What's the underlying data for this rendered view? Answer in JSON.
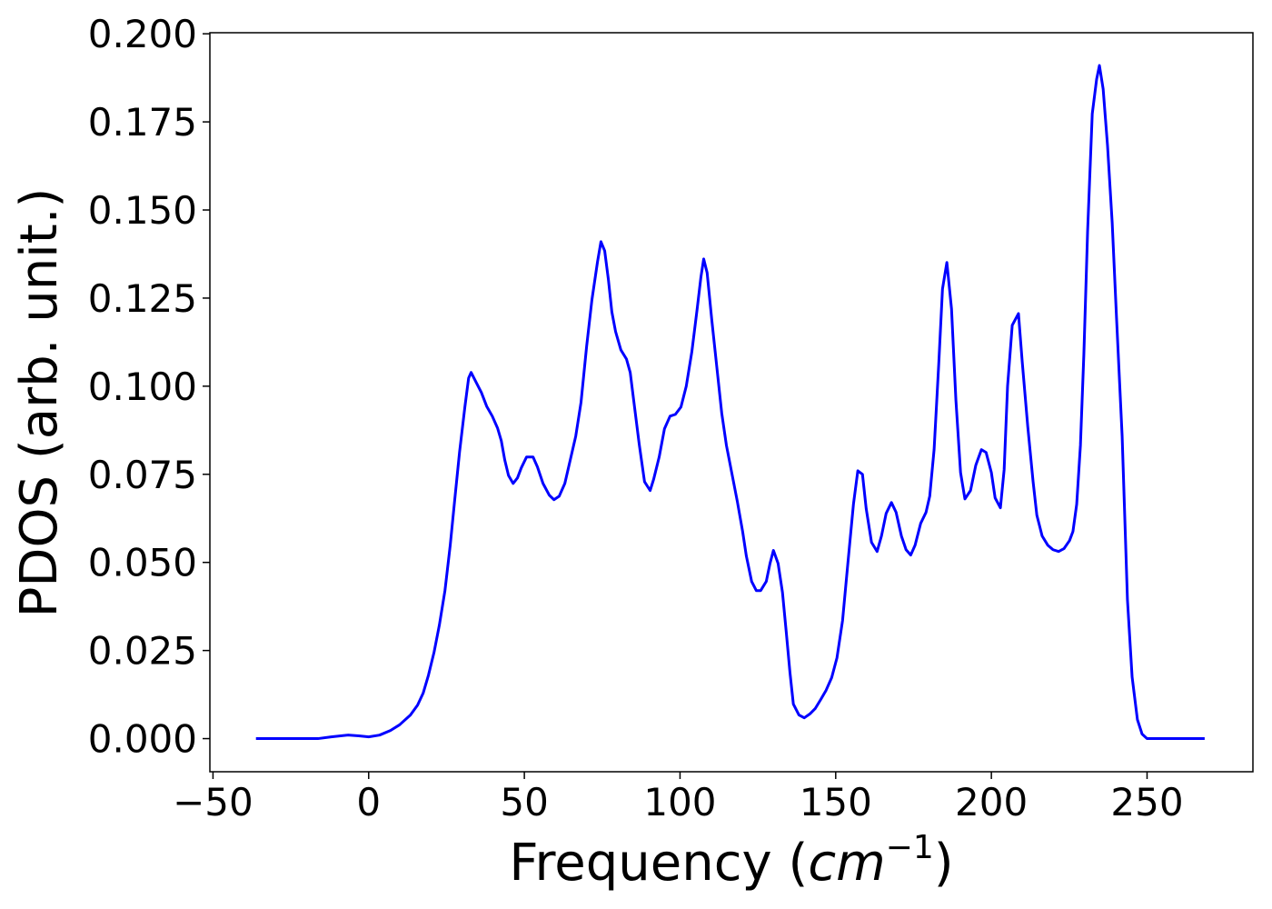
{
  "chart_data": {
    "type": "line",
    "xlabel": [
      "Frequency (",
      "cm",
      "−1",
      ")"
    ],
    "ylabel": "PDOS (arb. unit.)",
    "xlim": [
      -51,
      284
    ],
    "ylim": [
      -0.0094,
      0.2003
    ],
    "xticks": [
      {
        "value": -50,
        "label": "−50"
      },
      0,
      50,
      100,
      150,
      200,
      250
    ],
    "yticks": [
      {
        "value": 0,
        "label": "0.000"
      },
      {
        "value": 0.025,
        "label": "0.025"
      },
      {
        "value": 0.05,
        "label": "0.050"
      },
      {
        "value": 0.075,
        "label": "0.075"
      },
      {
        "value": 0.1,
        "label": "0.100"
      },
      {
        "value": 0.125,
        "label": "0.125"
      },
      {
        "value": 0.15,
        "label": "0.150"
      },
      {
        "value": 0.175,
        "label": "0.175"
      },
      {
        "value": 0.2,
        "label": "0.200"
      }
    ],
    "x": [
      -36.2,
      -16.3,
      -12.0,
      -6.7,
      -3.2,
      0,
      3.5,
      7.0,
      9.9,
      13.4,
      15.7,
      17.5,
      19.2,
      21.0,
      22.7,
      24.5,
      26.2,
      27.7,
      29.2,
      30.9,
      32.1,
      32.9,
      34.4,
      36.2,
      37.9,
      39.7,
      41.4,
      42.6,
      43.7,
      44.9,
      46.4,
      47.8,
      49.0,
      50.7,
      52.8,
      54.2,
      56.0,
      58.0,
      59.5,
      61.2,
      63.0,
      64.7,
      66.5,
      68.2,
      70.0,
      71.7,
      73.5,
      74.6,
      75.8,
      77.0,
      78.1,
      79.3,
      81.0,
      82.8,
      84.0,
      85.1,
      86.9,
      88.6,
      90.4,
      91.5,
      93.3,
      95.0,
      96.8,
      98.5,
      100.3,
      102.0,
      103.8,
      105.5,
      106.7,
      107.6,
      108.7,
      110.2,
      112.0,
      113.4,
      114.9,
      116.6,
      118.4,
      120.1,
      121.3,
      123.0,
      124.5,
      125.9,
      127.7,
      128.9,
      130.0,
      131.5,
      132.9,
      134.1,
      135.3,
      136.4,
      138.2,
      139.9,
      141.7,
      143.4,
      145.2,
      146.9,
      148.7,
      150.4,
      152.2,
      153.9,
      155.7,
      157.1,
      158.6,
      159.8,
      161.5,
      163.3,
      164.7,
      166.2,
      167.9,
      169.4,
      171.1,
      172.6,
      174.1,
      175.5,
      177.3,
      179.0,
      180.2,
      181.6,
      183.1,
      184.3,
      185.7,
      187.2,
      188.6,
      190.1,
      191.5,
      193.3,
      195.0,
      196.8,
      198.3,
      200.0,
      201.2,
      202.9,
      204.1,
      205.2,
      206.7,
      208.7,
      209.9,
      211.7,
      213.4,
      214.6,
      216.3,
      218.1,
      219.8,
      221.6,
      223.3,
      225.1,
      226.2,
      227.4,
      228.6,
      229.7,
      230.9,
      232.4,
      233.8,
      234.7,
      235.9,
      237.3,
      238.8,
      240.2,
      242.0,
      243.7,
      245.2,
      246.9,
      248.4,
      250.0,
      254.8,
      268.5
    ],
    "series": [
      {
        "name": "PDOS",
        "color": "#0000ff",
        "values": [
          0,
          0,
          0.0005,
          0.001,
          0.0008,
          0.0005,
          0.001,
          0.0023,
          0.0039,
          0.0067,
          0.0095,
          0.0129,
          0.018,
          0.0245,
          0.0322,
          0.042,
          0.0549,
          0.0683,
          0.0814,
          0.0941,
          0.1023,
          0.1039,
          0.1013,
          0.0982,
          0.0943,
          0.0915,
          0.0881,
          0.0845,
          0.0791,
          0.0747,
          0.0724,
          0.074,
          0.0768,
          0.0799,
          0.0799,
          0.0771,
          0.0724,
          0.0691,
          0.0678,
          0.0688,
          0.0724,
          0.0789,
          0.0858,
          0.0954,
          0.1113,
          0.1245,
          0.1353,
          0.141,
          0.1384,
          0.1302,
          0.1211,
          0.1155,
          0.1103,
          0.1077,
          0.1039,
          0.0961,
          0.0835,
          0.0729,
          0.0704,
          0.0735,
          0.0799,
          0.0879,
          0.0915,
          0.092,
          0.0941,
          0.1,
          0.1098,
          0.1219,
          0.1309,
          0.1361,
          0.1322,
          0.1188,
          0.1039,
          0.0923,
          0.0832,
          0.0755,
          0.0673,
          0.0588,
          0.0518,
          0.0446,
          0.042,
          0.042,
          0.0446,
          0.0497,
          0.0534,
          0.0497,
          0.0415,
          0.0304,
          0.0188,
          0.0098,
          0.0067,
          0.0059,
          0.007,
          0.0085,
          0.0111,
          0.0137,
          0.0173,
          0.0229,
          0.0335,
          0.0497,
          0.0665,
          0.076,
          0.075,
          0.0652,
          0.0557,
          0.0531,
          0.0575,
          0.0639,
          0.067,
          0.0642,
          0.0575,
          0.0536,
          0.0521,
          0.0549,
          0.0611,
          0.0642,
          0.0688,
          0.082,
          0.1064,
          0.1276,
          0.1351,
          0.1219,
          0.0961,
          0.0755,
          0.068,
          0.0704,
          0.0776,
          0.082,
          0.0812,
          0.0755,
          0.0683,
          0.0655,
          0.0763,
          0.1,
          0.1173,
          0.1206,
          0.107,
          0.0884,
          0.0729,
          0.0634,
          0.0575,
          0.0549,
          0.0536,
          0.0531,
          0.0539,
          0.0562,
          0.0588,
          0.0665,
          0.0832,
          0.109,
          0.1438,
          0.1773,
          0.1871,
          0.191,
          0.1843,
          0.1683,
          0.1464,
          0.1193,
          0.0858,
          0.0394,
          0.0175,
          0.0054,
          0.0013,
          0,
          0,
          0
        ]
      }
    ]
  }
}
